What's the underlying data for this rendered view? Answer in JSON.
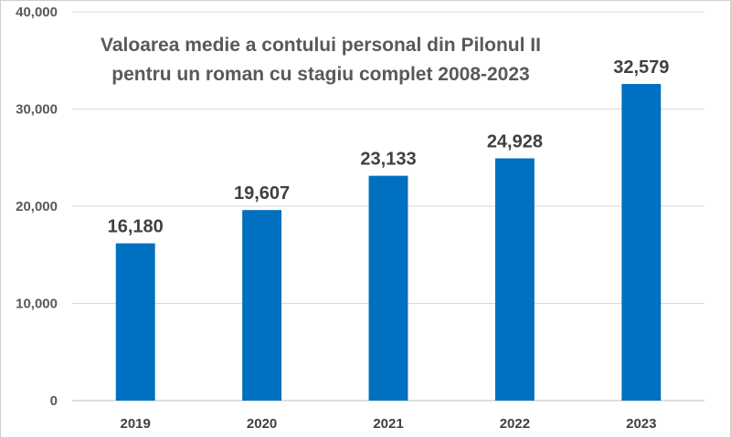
{
  "chart_data": {
    "type": "bar",
    "title_lines": [
      "Valoarea medie a contului personal din Pilonul II",
      "pentru un roman cu stagiu complet 2008-2023"
    ],
    "categories": [
      "2019",
      "2020",
      "2021",
      "2022",
      "2023"
    ],
    "values": [
      16180,
      19607,
      23133,
      24928,
      32579
    ],
    "data_labels": [
      "16,180",
      "19,607",
      "23,133",
      "24,928",
      "32,579"
    ],
    "y_ticks": [
      0,
      10000,
      20000,
      30000,
      40000
    ],
    "y_tick_labels": [
      "0",
      "10,000",
      "20,000",
      "30,000",
      "40,000"
    ],
    "ylim": [
      0,
      40000
    ],
    "bar_color": "#0070C0",
    "gridlines": true,
    "legend": "none",
    "xlabel": "",
    "ylabel": ""
  }
}
